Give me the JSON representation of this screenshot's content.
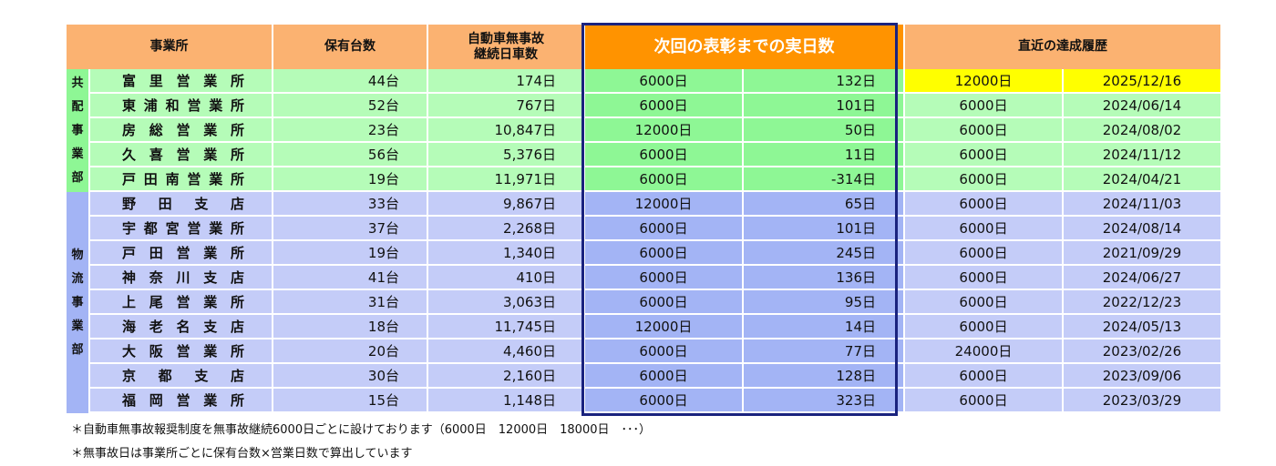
{
  "headers": {
    "office": "事業所",
    "vehicles": "保有台数",
    "days_line1": "自動車無事故",
    "days_line2": "継続日車数",
    "next_award": "次回の表彰までの実日数",
    "history": "直近の達成履歴"
  },
  "departments": [
    {
      "chars": [
        "共",
        "配",
        "事",
        "業",
        "部"
      ],
      "color": "green"
    },
    {
      "chars": [
        "物",
        "流",
        "事",
        "業",
        "部"
      ],
      "color": "blue"
    }
  ],
  "rows": [
    {
      "office": [
        "富",
        "里",
        "営",
        "業",
        "所"
      ],
      "vehicles": "44台",
      "days": "174日",
      "target": "6000日",
      "remaining": "132日",
      "last_award": "12000日",
      "last_date": "2025/12/16",
      "dept": 0,
      "highlight": true
    },
    {
      "office": [
        "東",
        "浦",
        "和",
        "営",
        "業",
        "所"
      ],
      "vehicles": "52台",
      "days": "767日",
      "target": "6000日",
      "remaining": "101日",
      "last_award": "6000日",
      "last_date": "2024/06/14",
      "dept": 0
    },
    {
      "office": [
        "房",
        "総",
        "営",
        "業",
        "所"
      ],
      "vehicles": "23台",
      "days": "10,847日",
      "target": "12000日",
      "remaining": "50日",
      "last_award": "6000日",
      "last_date": "2024/08/02",
      "dept": 0
    },
    {
      "office": [
        "久",
        "喜",
        "営",
        "業",
        "所"
      ],
      "vehicles": "56台",
      "days": "5,376日",
      "target": "6000日",
      "remaining": "11日",
      "last_award": "6000日",
      "last_date": "2024/11/12",
      "dept": 0
    },
    {
      "office": [
        "戸",
        "田",
        "南",
        "営",
        "業",
        "所"
      ],
      "vehicles": "19台",
      "days": "11,971日",
      "target": "6000日",
      "remaining": "-314日",
      "last_award": "6000日",
      "last_date": "2024/04/21",
      "dept": 0
    },
    {
      "office": [
        "野",
        "田",
        "支",
        "店"
      ],
      "vehicles": "33台",
      "days": "9,867日",
      "target": "12000日",
      "remaining": "65日",
      "last_award": "6000日",
      "last_date": "2024/11/03",
      "dept": 1
    },
    {
      "office": [
        "宇",
        "都",
        "宮",
        "営",
        "業",
        "所"
      ],
      "vehicles": "37台",
      "days": "2,268日",
      "target": "6000日",
      "remaining": "101日",
      "last_award": "6000日",
      "last_date": "2024/08/14",
      "dept": 1
    },
    {
      "office": [
        "戸",
        "田",
        "営",
        "業",
        "所"
      ],
      "vehicles": "19台",
      "days": "1,340日",
      "target": "6000日",
      "remaining": "245日",
      "last_award": "6000日",
      "last_date": "2021/09/29",
      "dept": 1
    },
    {
      "office": [
        "神",
        "奈",
        "川",
        "支",
        "店"
      ],
      "vehicles": "41台",
      "days": "410日",
      "target": "6000日",
      "remaining": "136日",
      "last_award": "6000日",
      "last_date": "2024/06/27",
      "dept": 1
    },
    {
      "office": [
        "上",
        "尾",
        "営",
        "業",
        "所"
      ],
      "vehicles": "31台",
      "days": "3,063日",
      "target": "6000日",
      "remaining": "95日",
      "last_award": "6000日",
      "last_date": "2022/12/23",
      "dept": 1
    },
    {
      "office": [
        "海",
        "老",
        "名",
        "支",
        "店"
      ],
      "vehicles": "18台",
      "days": "11,745日",
      "target": "12000日",
      "remaining": "14日",
      "last_award": "6000日",
      "last_date": "2024/05/13",
      "dept": 1
    },
    {
      "office": [
        "大",
        "阪",
        "営",
        "業",
        "所"
      ],
      "vehicles": "20台",
      "days": "4,460日",
      "target": "6000日",
      "remaining": "77日",
      "last_award": "24000日",
      "last_date": "2023/02/26",
      "dept": 1
    },
    {
      "office": [
        "京",
        "都",
        "支",
        "店"
      ],
      "vehicles": "30台",
      "days": "2,160日",
      "target": "6000日",
      "remaining": "128日",
      "last_award": "6000日",
      "last_date": "2023/09/06",
      "dept": 1
    },
    {
      "office": [
        "福",
        "岡",
        "営",
        "業",
        "所"
      ],
      "vehicles": "15台",
      "days": "1,148日",
      "target": "6000日",
      "remaining": "323日",
      "last_award": "6000日",
      "last_date": "2023/03/29",
      "dept": 1
    }
  ],
  "notes": [
    "＊自動車無事故報奨制度を無事故継続6000日ごとに設けております（6000日　12000日　18000日　･･･）",
    "＊無事故日は事業所ごとに保有台数×営業日数で算出しています"
  ],
  "colors": {
    "header": "#fbb271",
    "header_accent": "#ff9300",
    "green": "#b5fcb8",
    "green_dark": "#8ef795",
    "blue": "#c4ccf8",
    "blue_dark": "#a3b4f5",
    "highlight": "#ffff00",
    "frame": "#1a237e"
  }
}
